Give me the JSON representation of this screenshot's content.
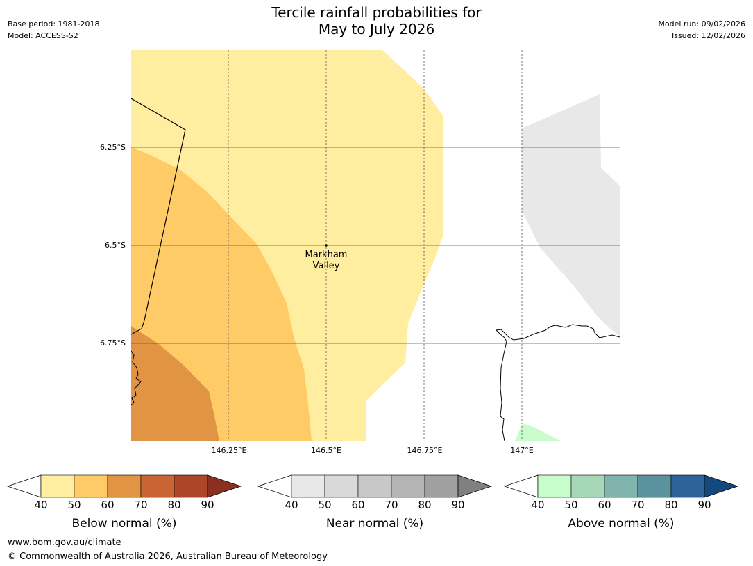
{
  "header": {
    "title_line1": "Tercile rainfall probabilities for",
    "title_line2": "May to July 2026",
    "base_period": "Base period: 1981-2018",
    "model": "Model: ACCESS-S2",
    "model_run": "Model run: 09/02/2026",
    "issued": "Issued: 12/02/2026"
  },
  "map": {
    "latitude_labels": [
      "6.25°S",
      "6.5°S",
      "6.75°S"
    ],
    "longitude_labels": [
      "146.25°E",
      "146.5°E",
      "146.75°E",
      "147°E"
    ],
    "place_name_line1": "Markham",
    "place_name_line2": "Valley"
  },
  "legends": [
    {
      "title": "Below normal (%)",
      "ticks": [
        "40",
        "50",
        "60",
        "70",
        "80",
        "90"
      ],
      "colors": [
        "#ffeda0",
        "#fecb66",
        "#e09444",
        "#cb6434",
        "#ab4628",
        "#8b2f1f"
      ]
    },
    {
      "title": "Near normal (%)",
      "ticks": [
        "40",
        "50",
        "60",
        "70",
        "80",
        "90"
      ],
      "colors": [
        "#e8e8e8",
        "#d9d9d9",
        "#c8c8c8",
        "#b4b4b4",
        "#a0a0a0",
        "#808080"
      ]
    },
    {
      "title": "Above normal (%)",
      "ticks": [
        "40",
        "50",
        "60",
        "70",
        "80",
        "90"
      ],
      "colors": [
        "#c8fcca",
        "#a6d8b8",
        "#82b4ae",
        "#5a929e",
        "#2e6399",
        "#124a80"
      ]
    }
  ],
  "footer": {
    "url": "www.bom.gov.au/climate",
    "copyright": "© Commonwealth of Australia 2026, Australian Bureau of Meteorology"
  }
}
